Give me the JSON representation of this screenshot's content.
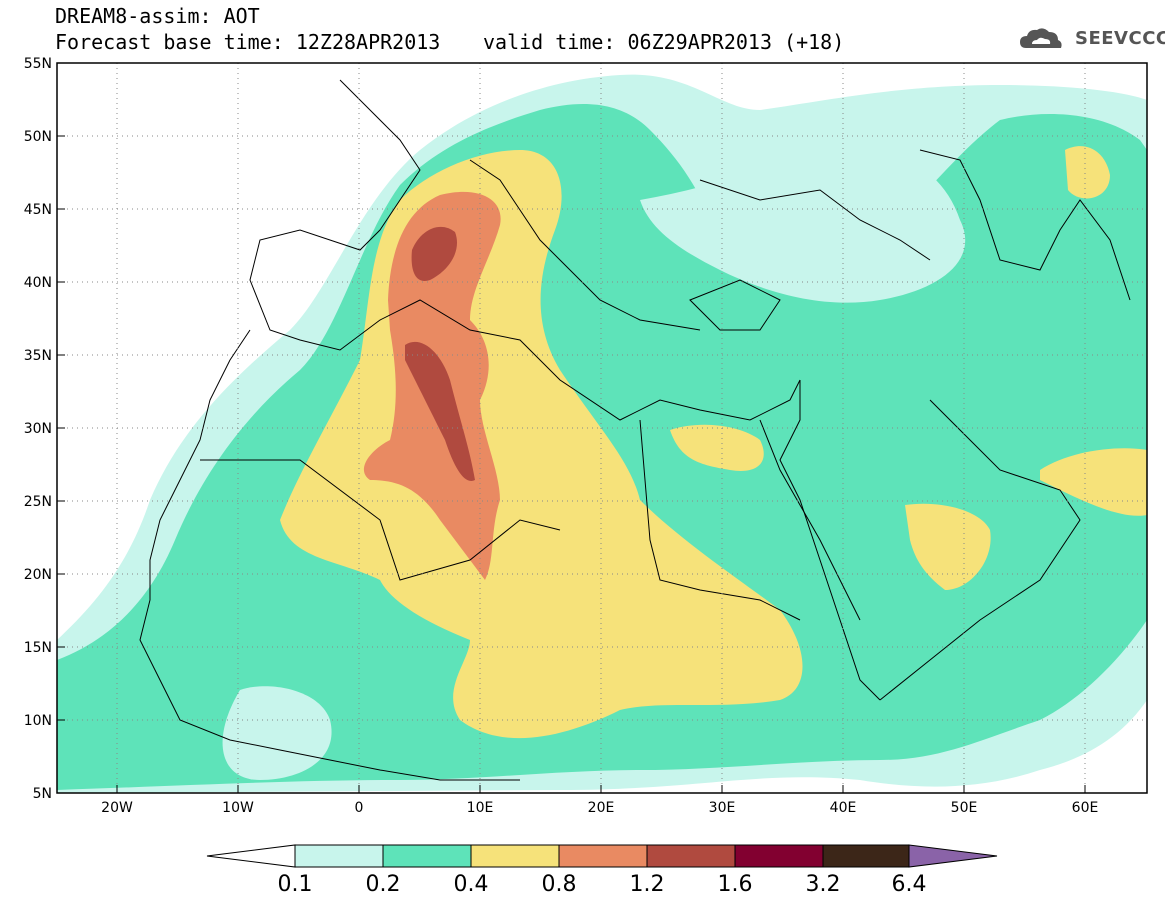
{
  "header": {
    "title_line1": "DREAM8-assim: AOT",
    "title_line2": "Forecast base time: 12Z28APR2013",
    "valid_time": "valid time: 06Z29APR2013 (+18)",
    "logo_text": "SEEVCCC",
    "logo": "cloud-logo-icon"
  },
  "axes": {
    "lat_labels": [
      "55N",
      "50N",
      "45N",
      "40N",
      "35N",
      "30N",
      "25N",
      "20N",
      "15N",
      "10N",
      "5N"
    ],
    "lon_labels": [
      "20W",
      "10W",
      "0",
      "10E",
      "20E",
      "30E",
      "40E",
      "50E",
      "60E"
    ]
  },
  "colorbar": {
    "labels": [
      "0.1",
      "0.2",
      "0.4",
      "0.8",
      "1.2",
      "1.6",
      "3.2",
      "6.4"
    ],
    "colors": [
      "#c8f5ec",
      "#5ee3b9",
      "#f6e27a",
      "#e98a62",
      "#b04a3f",
      "#820030",
      "#3c2618",
      "#8a63a8"
    ]
  },
  "chart_data": {
    "type": "heatmap",
    "quantity": "AOT",
    "lon_range": [
      -25,
      65
    ],
    "lat_range": [
      5,
      55
    ],
    "levels": [
      0.1,
      0.2,
      0.4,
      0.8,
      1.2,
      1.6,
      3.2,
      6.4
    ],
    "grid": "dotted"
  }
}
